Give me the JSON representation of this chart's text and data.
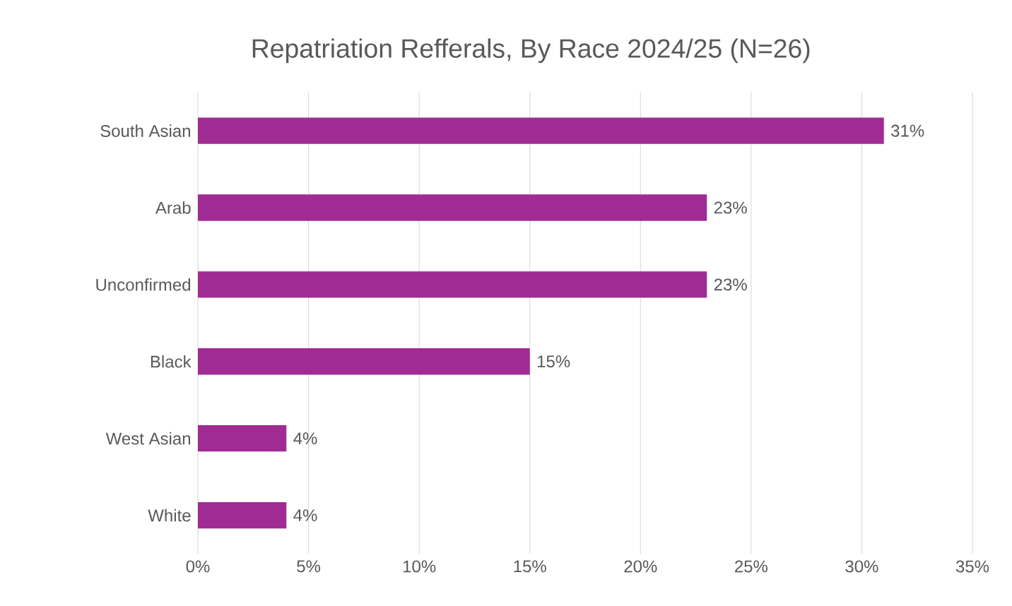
{
  "chart_data": {
    "type": "bar",
    "orientation": "horizontal",
    "title": "Repatriation Refferals, By Race 2024/25 (N=26)",
    "categories": [
      "South Asian",
      "Arab",
      "Unconfirmed",
      "Black",
      "West Asian",
      "White"
    ],
    "values": [
      31,
      23,
      23,
      15,
      4,
      4
    ],
    "value_labels": [
      "31%",
      "23%",
      "23%",
      "15%",
      "4%",
      "4%"
    ],
    "color": "#a02b93",
    "xlim": [
      0,
      35
    ],
    "xticks": [
      {
        "value": 0,
        "label": "0%"
      },
      {
        "value": 5,
        "label": "5%"
      },
      {
        "value": 10,
        "label": "10%"
      },
      {
        "value": 15,
        "label": "15%"
      },
      {
        "value": 20,
        "label": "20%"
      },
      {
        "value": 25,
        "label": "25%"
      },
      {
        "value": 30,
        "label": "30%"
      },
      {
        "value": 35,
        "label": "35%"
      }
    ],
    "grid": "x"
  }
}
